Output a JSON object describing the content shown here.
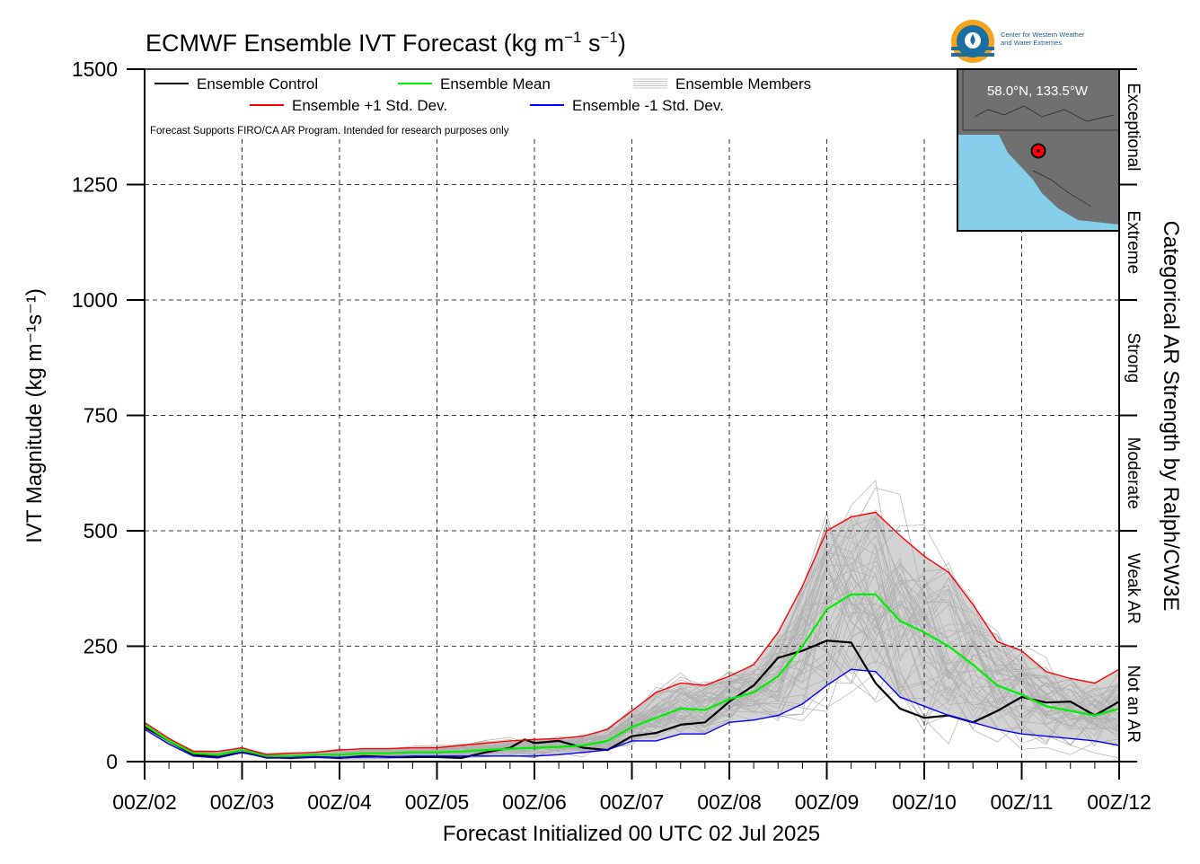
{
  "title": {
    "main": "ECMWF Ensemble IVT Forecast (kg m",
    "sup1": "−1",
    "mid": " s",
    "sup2": "−1",
    "end": ")"
  },
  "logo": {
    "org_line1": "Center for Western Weather",
    "org_line2": "and Water Extremes"
  },
  "inset_map": {
    "location_label": "58.0°N, 133.5°W",
    "land_color": "#707070",
    "ocean_color": "#87ceeb",
    "marker_color": "#ff0000"
  },
  "footnote": "Forecast Supports FIRO/CA AR Program. Intended for research purposes only",
  "chart_data": {
    "type": "line",
    "xlabel": "Forecast Initialized 00 UTC 02 Jul 2025",
    "ylabel": "IVT Magnitude (kg m⁻¹s⁻¹)",
    "right_label": "Categorical AR Strength by Ralph/CW3E",
    "ylim": [
      0,
      1500
    ],
    "xlim": [
      0,
      10
    ],
    "x_unit": "days since 00Z/02",
    "yticks": [
      0,
      250,
      500,
      750,
      1000,
      1250,
      1500
    ],
    "xtick_labels": [
      "00Z/02",
      "00Z/03",
      "00Z/04",
      "00Z/05",
      "00Z/06",
      "00Z/07",
      "00Z/08",
      "00Z/09",
      "00Z/10",
      "00Z/11",
      "00Z/12"
    ],
    "grid": true,
    "legend_position": "top-left",
    "categories": [
      {
        "label": "Not an AR",
        "from": 0,
        "to": 250
      },
      {
        "label": "Weak AR",
        "from": 250,
        "to": 500
      },
      {
        "label": "Moderate",
        "from": 500,
        "to": 750
      },
      {
        "label": "Strong",
        "from": 750,
        "to": 1000
      },
      {
        "label": "Extreme",
        "from": 1000,
        "to": 1250
      },
      {
        "label": "Exceptional",
        "from": 1250,
        "to": 1500
      }
    ],
    "series": [
      {
        "name": "Ensemble Control",
        "color": "#000000",
        "values": [
          [
            0,
            75
          ],
          [
            0.25,
            45
          ],
          [
            0.5,
            15
          ],
          [
            0.75,
            10
          ],
          [
            1,
            20
          ],
          [
            1.25,
            10
          ],
          [
            1.5,
            8
          ],
          [
            1.75,
            10
          ],
          [
            2,
            8
          ],
          [
            2.25,
            12
          ],
          [
            2.5,
            10
          ],
          [
            2.75,
            10
          ],
          [
            3,
            10
          ],
          [
            3.25,
            8
          ],
          [
            3.5,
            20
          ],
          [
            3.75,
            30
          ],
          [
            3.9,
            48
          ],
          [
            4,
            40
          ],
          [
            4.25,
            45
          ],
          [
            4.5,
            30
          ],
          [
            4.75,
            25
          ],
          [
            5,
            55
          ],
          [
            5.25,
            62
          ],
          [
            5.5,
            80
          ],
          [
            5.75,
            85
          ],
          [
            6,
            130
          ],
          [
            6.25,
            165
          ],
          [
            6.5,
            225
          ],
          [
            6.75,
            240
          ],
          [
            7,
            262
          ],
          [
            7.25,
            258
          ],
          [
            7.5,
            170
          ],
          [
            7.75,
            115
          ],
          [
            8,
            95
          ],
          [
            8.25,
            100
          ],
          [
            8.5,
            85
          ],
          [
            8.75,
            110
          ],
          [
            9,
            140
          ],
          [
            9.25,
            128
          ],
          [
            9.5,
            130
          ],
          [
            9.75,
            100
          ],
          [
            10,
            130
          ]
        ]
      },
      {
        "name": "Ensemble Mean",
        "color": "#00ee00",
        "values": [
          [
            0,
            80
          ],
          [
            0.25,
            45
          ],
          [
            0.5,
            18
          ],
          [
            0.75,
            15
          ],
          [
            1,
            25
          ],
          [
            1.25,
            12
          ],
          [
            1.5,
            12
          ],
          [
            1.75,
            15
          ],
          [
            2,
            15
          ],
          [
            2.25,
            18
          ],
          [
            2.5,
            18
          ],
          [
            2.75,
            20
          ],
          [
            3,
            20
          ],
          [
            3.25,
            22
          ],
          [
            3.5,
            25
          ],
          [
            3.75,
            28
          ],
          [
            4,
            30
          ],
          [
            4.25,
            32
          ],
          [
            4.5,
            35
          ],
          [
            4.75,
            45
          ],
          [
            5,
            75
          ],
          [
            5.25,
            95
          ],
          [
            5.5,
            115
          ],
          [
            5.75,
            112
          ],
          [
            6,
            135
          ],
          [
            6.25,
            150
          ],
          [
            6.5,
            185
          ],
          [
            6.75,
            250
          ],
          [
            7,
            330
          ],
          [
            7.25,
            362
          ],
          [
            7.5,
            362
          ],
          [
            7.75,
            305
          ],
          [
            8,
            280
          ],
          [
            8.25,
            250
          ],
          [
            8.5,
            210
          ],
          [
            8.75,
            165
          ],
          [
            9,
            145
          ],
          [
            9.25,
            120
          ],
          [
            9.5,
            110
          ],
          [
            9.75,
            100
          ],
          [
            10,
            115
          ]
        ]
      },
      {
        "name": "Ensemble +1 Std. Dev.",
        "color": "#ff0000",
        "values": [
          [
            0,
            85
          ],
          [
            0.25,
            50
          ],
          [
            0.5,
            22
          ],
          [
            0.75,
            22
          ],
          [
            1,
            30
          ],
          [
            1.25,
            15
          ],
          [
            1.5,
            18
          ],
          [
            1.75,
            20
          ],
          [
            2,
            25
          ],
          [
            2.25,
            28
          ],
          [
            2.5,
            28
          ],
          [
            2.75,
            30
          ],
          [
            3,
            30
          ],
          [
            3.25,
            35
          ],
          [
            3.5,
            40
          ],
          [
            3.75,
            45
          ],
          [
            4,
            48
          ],
          [
            4.25,
            50
          ],
          [
            4.5,
            55
          ],
          [
            4.75,
            70
          ],
          [
            5,
            110
          ],
          [
            5.25,
            150
          ],
          [
            5.5,
            170
          ],
          [
            5.75,
            165
          ],
          [
            6,
            185
          ],
          [
            6.25,
            210
          ],
          [
            6.5,
            280
          ],
          [
            6.75,
            380
          ],
          [
            7,
            500
          ],
          [
            7.25,
            530
          ],
          [
            7.5,
            540
          ],
          [
            7.75,
            490
          ],
          [
            8,
            445
          ],
          [
            8.25,
            410
          ],
          [
            8.5,
            340
          ],
          [
            8.75,
            260
          ],
          [
            9,
            240
          ],
          [
            9.25,
            195
          ],
          [
            9.5,
            180
          ],
          [
            9.75,
            170
          ],
          [
            10,
            200
          ]
        ]
      },
      {
        "name": "Ensemble -1 Std. Dev.",
        "color": "#0000ff",
        "values": [
          [
            0,
            70
          ],
          [
            0.25,
            38
          ],
          [
            0.5,
            12
          ],
          [
            0.75,
            8
          ],
          [
            1,
            20
          ],
          [
            1.25,
            8
          ],
          [
            1.5,
            8
          ],
          [
            1.75,
            10
          ],
          [
            2,
            8
          ],
          [
            2.25,
            10
          ],
          [
            2.5,
            10
          ],
          [
            2.75,
            12
          ],
          [
            3,
            12
          ],
          [
            3.25,
            12
          ],
          [
            3.5,
            12
          ],
          [
            3.75,
            12
          ],
          [
            4,
            12
          ],
          [
            4.25,
            15
          ],
          [
            4.5,
            20
          ],
          [
            4.75,
            25
          ],
          [
            5,
            45
          ],
          [
            5.25,
            45
          ],
          [
            5.5,
            60
          ],
          [
            5.75,
            60
          ],
          [
            6,
            85
          ],
          [
            6.25,
            90
          ],
          [
            6.5,
            100
          ],
          [
            6.75,
            125
          ],
          [
            7,
            165
          ],
          [
            7.25,
            200
          ],
          [
            7.5,
            195
          ],
          [
            7.75,
            140
          ],
          [
            8,
            120
          ],
          [
            8.25,
            100
          ],
          [
            8.5,
            85
          ],
          [
            8.75,
            70
          ],
          [
            9,
            60
          ],
          [
            9.25,
            55
          ],
          [
            9.5,
            50
          ],
          [
            9.75,
            45
          ],
          [
            10,
            35
          ]
        ]
      }
    ],
    "members_label": "Ensemble Members",
    "members_color": "#b0b0b0",
    "spread_color": "#d3d3d3"
  }
}
